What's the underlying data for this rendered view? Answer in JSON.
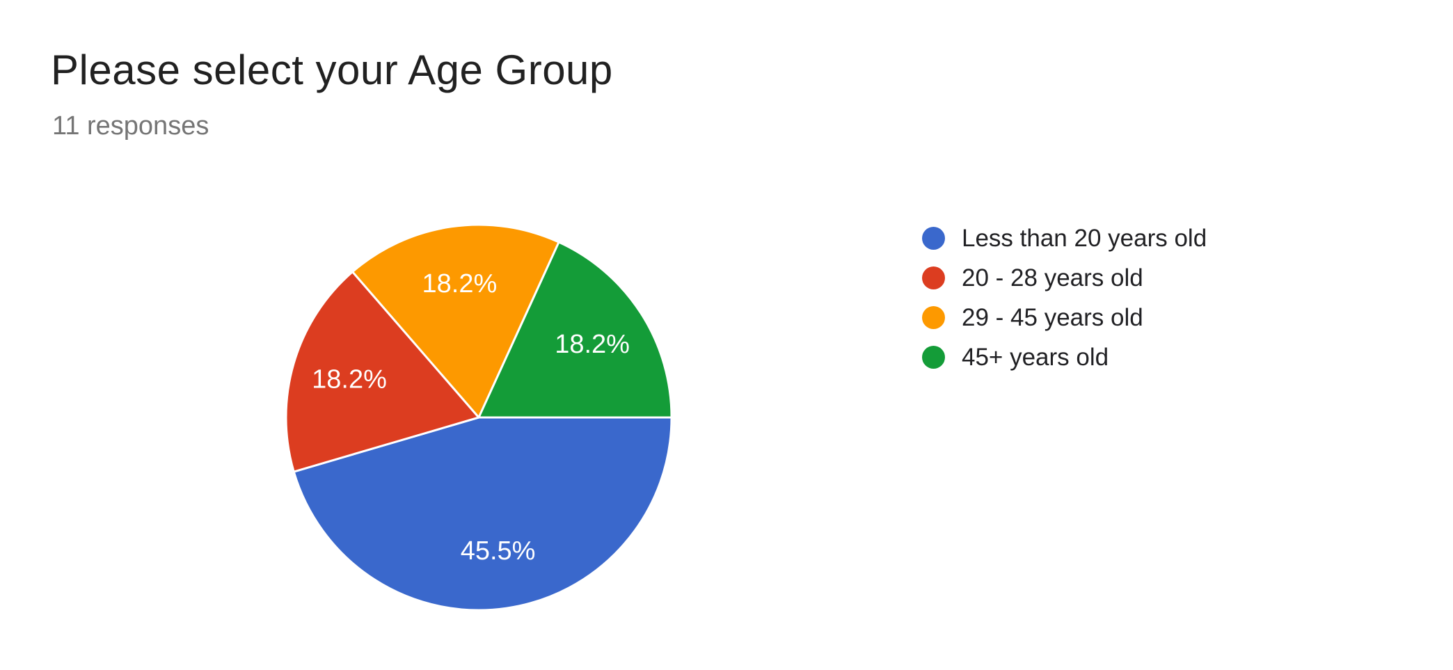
{
  "theme": {
    "background": "#ffffff",
    "title_color": "#212121",
    "subtitle_color": "#757575",
    "legend_text_color": "#212124",
    "slice_label_color": "#ffffff",
    "slice_separator_color": "#ffffff"
  },
  "chart_data": {
    "type": "pie",
    "title": "Please select your Age Group",
    "subtitle": "11 responses",
    "total_responses": 11,
    "start_angle_deg": 0,
    "direction": "clockwise",
    "legend_position": "right",
    "slices": [
      {
        "label": "Less than 20 years old",
        "value": 5,
        "percent": 45.5,
        "display": "45.5%",
        "color": "#3A68CC"
      },
      {
        "label": "20 - 28 years old",
        "value": 2,
        "percent": 18.2,
        "display": "18.2%",
        "color": "#DC3D20"
      },
      {
        "label": "29 - 45 years old",
        "value": 2,
        "percent": 18.2,
        "display": "18.2%",
        "color": "#FD9900"
      },
      {
        "label": "45+ years old",
        "value": 2,
        "percent": 18.2,
        "display": "18.2%",
        "color": "#149C38"
      }
    ]
  }
}
